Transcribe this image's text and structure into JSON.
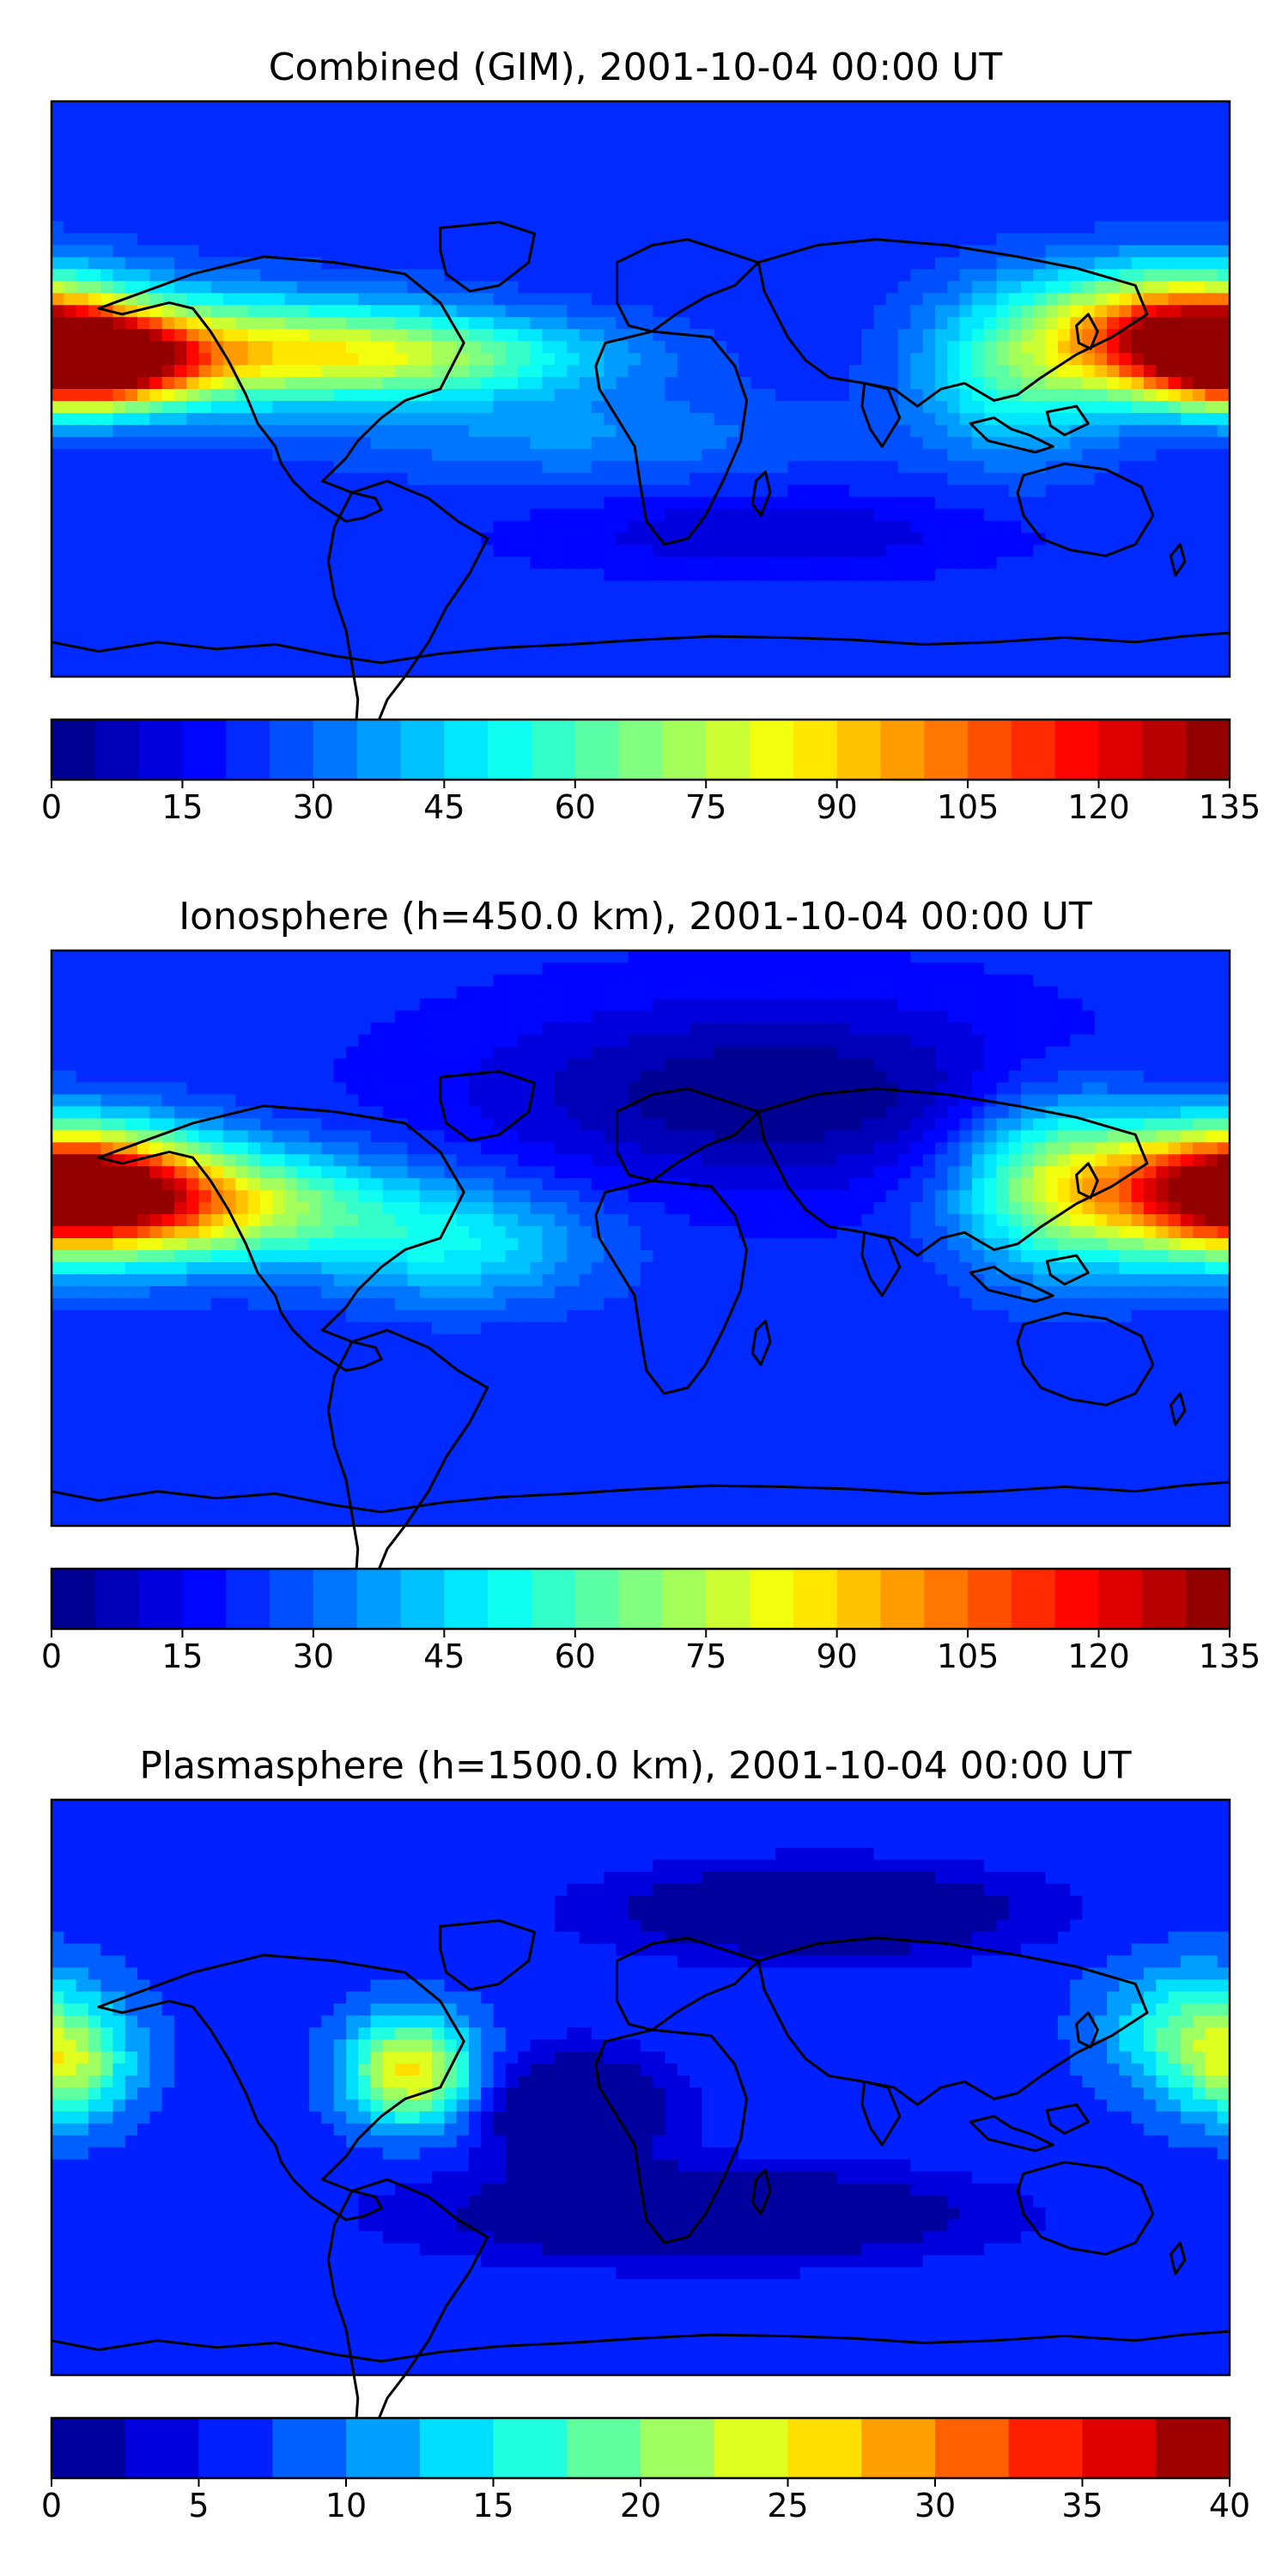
{
  "chart_data": [
    {
      "type": "heatmap",
      "title": "Combined (GIM), 2001-10-04 00:00 UT",
      "colormap": "jet",
      "colorbar": {
        "min": 0,
        "max": 135,
        "levels": 27,
        "ticks": [
          "0",
          "15",
          "30",
          "45",
          "60",
          "75",
          "90",
          "105",
          "120",
          "135"
        ]
      },
      "features": [
        {
          "lon": -170,
          "lat": 8,
          "value": 125,
          "slon": 22,
          "slat": 9
        },
        {
          "lon": -125,
          "lat": 12,
          "value": 75,
          "slon": 45,
          "slat": 12
        },
        {
          "lon": -60,
          "lat": 10,
          "value": 55,
          "slon": 40,
          "slat": 9
        },
        {
          "lon": 165,
          "lat": 18,
          "value": 115,
          "slon": 28,
          "slat": 13
        },
        {
          "lon": 115,
          "lat": 5,
          "value": 55,
          "slon": 22,
          "slat": 18
        },
        {
          "lon": -20,
          "lat": -15,
          "value": 35,
          "slon": 50,
          "slat": 10
        },
        {
          "lon": 40,
          "lat": -45,
          "value": 10,
          "slon": 45,
          "slat": 8
        }
      ]
    },
    {
      "type": "heatmap",
      "title": "Ionosphere  (h=450.0 km), 2001-10-04 00:00 UT",
      "colormap": "jet",
      "colorbar": {
        "min": 0,
        "max": 135,
        "levels": 27,
        "ticks": [
          "0",
          "15",
          "30",
          "45",
          "60",
          "75",
          "90",
          "105",
          "120",
          "135"
        ]
      },
      "features": [
        {
          "lon": -170,
          "lat": 15,
          "value": 100,
          "slon": 25,
          "slat": 12
        },
        {
          "lon": -125,
          "lat": 10,
          "value": 70,
          "slon": 35,
          "slat": 12
        },
        {
          "lon": -55,
          "lat": -2,
          "value": 48,
          "slon": 30,
          "slat": 13
        },
        {
          "lon": 170,
          "lat": 15,
          "value": 85,
          "slon": 35,
          "slat": 15
        },
        {
          "lon": 125,
          "lat": 18,
          "value": 55,
          "slon": 20,
          "slat": 20
        },
        {
          "lon": 40,
          "lat": 45,
          "value": 0,
          "slon": 60,
          "slat": 20
        }
      ]
    },
    {
      "type": "heatmap",
      "title": "Plasmasphere (h=1500.0 km), 2001-10-04 00:00 UT",
      "colormap": "jet",
      "colorbar": {
        "min": 0,
        "max": 40,
        "levels": 16,
        "ticks": [
          "0",
          "5",
          "10",
          "15",
          "20",
          "25",
          "30",
          "35",
          "40"
        ]
      },
      "features": [
        {
          "lon": -70,
          "lat": 5,
          "value": 26,
          "slon": 14,
          "slat": 12
        },
        {
          "lon": -175,
          "lat": 5,
          "value": 18,
          "slon": 14,
          "slat": 12
        },
        {
          "lon": 170,
          "lat": 18,
          "value": 18,
          "slon": 20,
          "slat": 14
        },
        {
          "lon": 80,
          "lat": 10,
          "value": 5,
          "slon": 30,
          "slat": 15
        },
        {
          "lon": -20,
          "lat": -8,
          "value": -6,
          "slon": 18,
          "slat": 12
        },
        {
          "lon": 20,
          "lat": -40,
          "value": -6,
          "slon": 50,
          "slat": 9
        },
        {
          "lon": 55,
          "lat": 55,
          "value": -5,
          "slon": 40,
          "slat": 9
        },
        {
          "lon": -100,
          "lat": -20,
          "value": 6,
          "slon": 40,
          "slat": 18
        }
      ]
    }
  ]
}
